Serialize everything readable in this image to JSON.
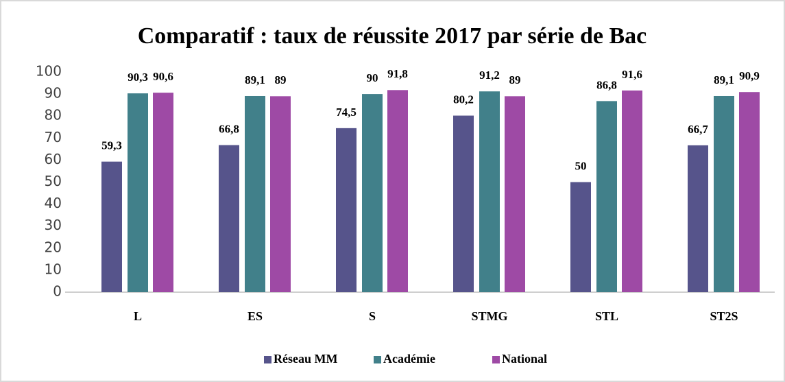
{
  "chart_data": {
    "type": "bar",
    "title": "Comparatif : taux de réussite 2017 par série de Bac",
    "categories": [
      "L",
      "ES",
      "S",
      "STMG",
      "STL",
      "ST2S"
    ],
    "series": [
      {
        "name": "Réseau MM",
        "color": "#56548b",
        "values": [
          59.3,
          66.8,
          74.5,
          80.2,
          50,
          66.7
        ],
        "value_labels": [
          "59,3",
          "66,8",
          "74,5",
          "80,2",
          "50",
          "66,7"
        ]
      },
      {
        "name": "Académie",
        "color": "#41808a",
        "values": [
          90.3,
          89.1,
          90,
          91.2,
          86.8,
          89.1
        ],
        "value_labels": [
          "90,3",
          "89,1",
          "90",
          "91,2",
          "86,8",
          "89,1"
        ]
      },
      {
        "name": "National",
        "color": "#9e4aa5",
        "values": [
          90.6,
          89,
          91.8,
          89,
          91.6,
          90.9
        ],
        "value_labels": [
          "90,6",
          "89",
          "91,8",
          "89",
          "91,6",
          "90,9"
        ]
      }
    ],
    "ylim": [
      0,
      100
    ],
    "yticks": [
      0,
      10,
      20,
      30,
      40,
      50,
      60,
      70,
      80,
      90,
      100
    ],
    "grid": false,
    "legend": "bottom"
  }
}
